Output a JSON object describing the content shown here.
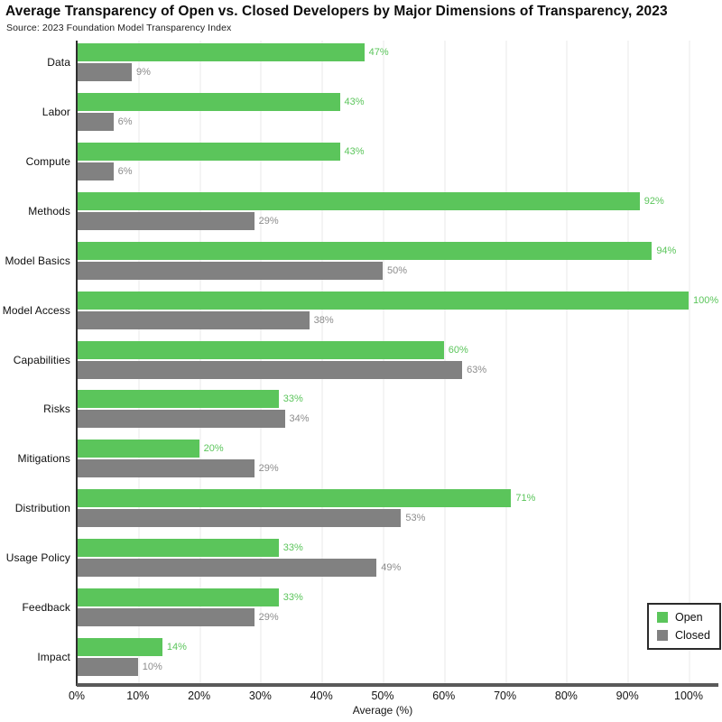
{
  "header": {
    "title": "Average Transparency of Open vs. Closed Developers by Major Dimensions of Transparency, 2023",
    "source": "Source: 2023 Foundation Model Transparency Index"
  },
  "colors": {
    "open_bar": "#5bc55b",
    "open_text": "#5bc55b",
    "closed_bar": "#818181",
    "closed_text": "#8c8c8c",
    "axis": "#595959",
    "gridline": "#f4f4f4"
  },
  "legend": {
    "position": "lower right",
    "items": [
      {
        "label": "Open",
        "color": "#5bc55b"
      },
      {
        "label": "Closed",
        "color": "#818181"
      }
    ]
  },
  "chart_data": {
    "type": "bar",
    "orientation": "horizontal",
    "title": "Average Transparency of Open vs. Closed Developers by Major Dimensions of Transparency, 2023",
    "subtitle": "Source: 2023 Foundation Model Transparency Index",
    "categories": [
      "Data",
      "Labor",
      "Compute",
      "Methods",
      "Model Basics",
      "Model Access",
      "Capabilities",
      "Risks",
      "Mitigations",
      "Distribution",
      "Usage Policy",
      "Feedback",
      "Impact"
    ],
    "series": [
      {
        "name": "Open",
        "values": [
          47,
          43,
          43,
          92,
          94,
          100,
          60,
          33,
          20,
          71,
          33,
          33,
          14
        ]
      },
      {
        "name": "Closed",
        "values": [
          9,
          6,
          6,
          29,
          50,
          38,
          63,
          34,
          29,
          53,
          49,
          29,
          10
        ]
      }
    ],
    "value_label_format": "{v}%",
    "xlabel": "Average (%)",
    "ylabel": "",
    "xlim": [
      0,
      100
    ],
    "x_ticks": [
      "0%",
      "10%",
      "20%",
      "30%",
      "40%",
      "50%",
      "60%",
      "70%",
      "80%",
      "90%",
      "100%"
    ],
    "grid": true,
    "legend_position": "lower right"
  }
}
